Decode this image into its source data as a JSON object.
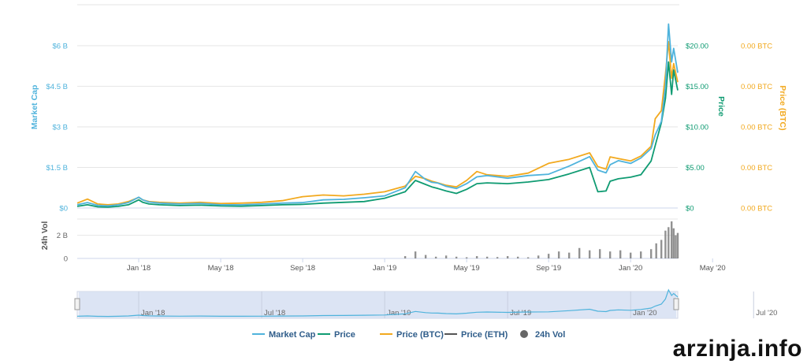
{
  "chart_data": {
    "type": "line",
    "x_ticks": [
      "Jan '18",
      "May '18",
      "Sep '18",
      "Jan '19",
      "May '19",
      "Sep '19",
      "Jan '20",
      "May '20"
    ],
    "y_axes": {
      "market_cap": {
        "title": "Market Cap",
        "ticks": [
          "$0",
          "$1.5 B",
          "$3 B",
          "$4.5 B",
          "$6 B"
        ],
        "range": [
          0,
          6
        ],
        "unit": "B USD",
        "color": "#4fb3dc"
      },
      "price": {
        "title": "Price",
        "ticks": [
          "$0",
          "$5.00",
          "$10.00",
          "$15.00",
          "$20.00"
        ],
        "range": [
          0,
          20
        ],
        "unit": "USD",
        "color": "#0f9b72"
      },
      "price_btc": {
        "title": "Price (BTC)",
        "ticks": [
          "0.00 BTC",
          "0.00 BTC",
          "0.00 BTC",
          "0.00 BTC",
          "0.00 BTC"
        ],
        "color": "#f2a91e"
      },
      "volume": {
        "title": "24h Vol",
        "ticks": [
          "0",
          "2 B"
        ],
        "range": [
          0,
          3.4
        ],
        "unit": "B USD",
        "color": "#555555"
      }
    },
    "x_range": [
      0,
      29.3
    ],
    "x_unit": "months since Oct 2017",
    "series": [
      {
        "name": "Market Cap",
        "color": "#4fb3dc",
        "axis": "market_cap",
        "x": [
          0,
          0.5,
          1,
          1.5,
          2,
          2.5,
          3,
          3.2,
          3.5,
          4,
          5,
          6,
          7,
          8,
          9,
          10,
          11,
          12,
          13,
          14,
          15,
          16,
          16.5,
          17,
          17.3,
          17.6,
          18,
          18.5,
          19,
          19.5,
          20,
          21,
          22,
          23,
          24,
          25,
          25.4,
          25.8,
          26,
          26.4,
          27,
          27.5,
          28,
          28.2,
          28.5,
          28.7,
          28.85,
          29,
          29.1,
          29.3
        ],
        "y": [
          0.12,
          0.2,
          0.1,
          0.08,
          0.12,
          0.2,
          0.4,
          0.3,
          0.22,
          0.18,
          0.15,
          0.17,
          0.12,
          0.12,
          0.15,
          0.18,
          0.2,
          0.3,
          0.32,
          0.38,
          0.45,
          0.75,
          1.35,
          1.05,
          0.95,
          0.92,
          0.8,
          0.72,
          0.9,
          1.15,
          1.2,
          1.1,
          1.2,
          1.25,
          1.55,
          1.9,
          1.4,
          1.3,
          1.6,
          1.75,
          1.65,
          1.85,
          2.2,
          2.7,
          3.2,
          4.5,
          6.8,
          5.4,
          5.9,
          5.0
        ]
      },
      {
        "name": "Price",
        "color": "#0f9b72",
        "axis": "price",
        "x": [
          0,
          0.5,
          1,
          1.5,
          2,
          2.5,
          3,
          3.2,
          3.5,
          4,
          5,
          6,
          7,
          8,
          9,
          10,
          11,
          12,
          13,
          14,
          15,
          16,
          16.5,
          17,
          17.3,
          17.6,
          18,
          18.5,
          19,
          19.5,
          20,
          21,
          22,
          23,
          24,
          25,
          25.4,
          25.8,
          26,
          26.4,
          27,
          27.5,
          28,
          28.2,
          28.5,
          28.7,
          28.85,
          29,
          29.1,
          29.3
        ],
        "y": [
          0.2,
          0.4,
          0.15,
          0.12,
          0.2,
          0.4,
          1.0,
          0.7,
          0.5,
          0.4,
          0.3,
          0.35,
          0.25,
          0.22,
          0.3,
          0.4,
          0.45,
          0.6,
          0.7,
          0.8,
          1.2,
          2.0,
          3.4,
          2.9,
          2.6,
          2.4,
          2.1,
          1.8,
          2.3,
          3.0,
          3.1,
          3.0,
          3.2,
          3.5,
          4.2,
          5.0,
          2.0,
          2.1,
          3.3,
          3.6,
          3.8,
          4.1,
          5.8,
          7.7,
          10.5,
          13.5,
          18.0,
          14.0,
          17.0,
          14.5
        ]
      },
      {
        "name": "Price (BTC)",
        "color": "#f2a91e",
        "axis": "price",
        "x": [
          0,
          0.5,
          1,
          1.5,
          2,
          2.5,
          3,
          3.2,
          3.5,
          4,
          5,
          6,
          7,
          8,
          9,
          10,
          11,
          12,
          13,
          14,
          15,
          16,
          16.5,
          17,
          17.3,
          17.6,
          18,
          18.5,
          19,
          19.5,
          20,
          21,
          22,
          23,
          24,
          25,
          25.4,
          25.8,
          26,
          26.4,
          27,
          27.5,
          28,
          28.2,
          28.5,
          28.7,
          28.85,
          29,
          29.1,
          29.3
        ],
        "y": [
          0.6,
          1.1,
          0.5,
          0.4,
          0.5,
          0.8,
          1.3,
          1.0,
          0.8,
          0.7,
          0.6,
          0.7,
          0.55,
          0.6,
          0.7,
          0.9,
          1.4,
          1.6,
          1.5,
          1.7,
          2.0,
          2.7,
          3.9,
          3.6,
          3.3,
          3.1,
          2.8,
          2.6,
          3.4,
          4.5,
          4.1,
          3.9,
          4.3,
          5.5,
          6.0,
          6.8,
          5.1,
          4.8,
          6.3,
          6.1,
          5.8,
          6.4,
          7.6,
          11.0,
          12.0,
          16.5,
          20.5,
          16.0,
          17.8,
          15.5
        ]
      },
      {
        "name": "Price (ETH)",
        "color": "#555555",
        "axis": "price",
        "x": [],
        "y": []
      },
      {
        "name": "24h Vol",
        "color": "#777777",
        "axis": "volume",
        "type": "bar",
        "x": [
          16,
          16.5,
          17,
          17.5,
          18,
          18.5,
          19,
          19.5,
          20,
          20.5,
          21,
          21.5,
          22,
          22.5,
          23,
          23.5,
          24,
          24.5,
          25,
          25.5,
          26,
          26.5,
          27,
          27.5,
          28,
          28.25,
          28.5,
          28.7,
          28.85,
          29,
          29.1,
          29.2,
          29.3
        ],
        "y": [
          0.2,
          0.6,
          0.3,
          0.15,
          0.25,
          0.15,
          0.1,
          0.2,
          0.15,
          0.12,
          0.2,
          0.15,
          0.1,
          0.25,
          0.4,
          0.6,
          0.5,
          0.9,
          0.7,
          0.8,
          0.6,
          0.7,
          0.5,
          0.6,
          0.8,
          1.3,
          1.6,
          2.4,
          2.7,
          3.2,
          2.6,
          2.0,
          2.2
        ]
      }
    ],
    "legend": [
      "Market Cap",
      "Price",
      "Price (BTC)",
      "Price (ETH)",
      "24h Vol"
    ],
    "legend_position": "bottom",
    "navigator_ticks": [
      "Jan '18",
      "Jul '18",
      "Jan '19",
      "Jul '19",
      "Jan '20",
      "Jul '20"
    ],
    "grid": true
  },
  "watermark": "arzinja.info",
  "colors": {
    "market_cap": "#4fb3dc",
    "price": "#0f9b72",
    "price_btc": "#f2a91e",
    "price_eth": "#555555",
    "volume": "#777777",
    "navigator_fill": "#d7e0f2"
  }
}
